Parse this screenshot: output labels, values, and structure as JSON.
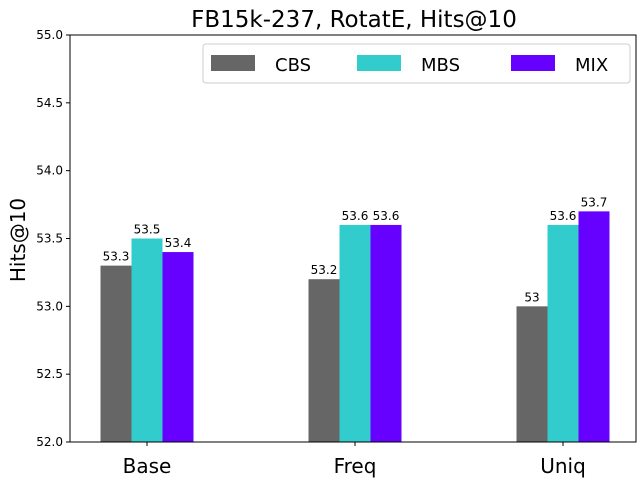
{
  "chart_data": {
    "type": "bar",
    "title": "FB15k-237, RotatE, Hits@10",
    "xlabel": "",
    "ylabel": "Hits@10",
    "ylim": [
      52.0,
      55.0
    ],
    "yticks": [
      "52.0",
      "52.5",
      "53.0",
      "53.5",
      "54.0",
      "54.5",
      "55.0"
    ],
    "categories": [
      "Base",
      "Freq",
      "Uniq"
    ],
    "series": [
      {
        "name": "CBS",
        "color": "#666666",
        "values": [
          53.3,
          53.2,
          53.0
        ],
        "labels": [
          "53.3",
          "53.2",
          "53"
        ]
      },
      {
        "name": "MBS",
        "color": "#33cccc",
        "values": [
          53.5,
          53.6,
          53.6
        ],
        "labels": [
          "53.5",
          "53.6",
          "53.6"
        ]
      },
      {
        "name": "MIX",
        "color": "#6600ff",
        "values": [
          53.4,
          53.6,
          53.7
        ],
        "labels": [
          "53.4",
          "53.6",
          "53.7"
        ]
      }
    ],
    "legend_position": "top-right",
    "grid": false
  }
}
